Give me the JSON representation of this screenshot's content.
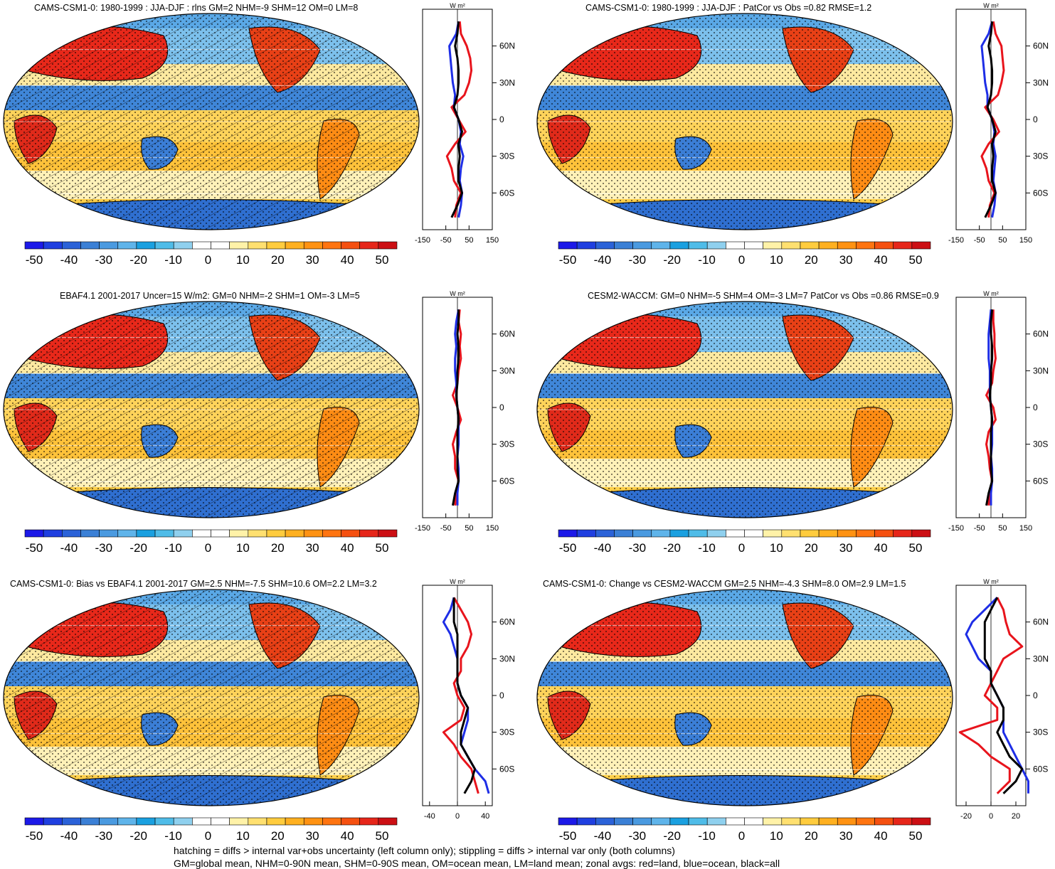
{
  "panels": [
    {
      "id": "p1",
      "title": "CAMS-CSM1-0: 1980-1999 : JJA-DJF : rlns GM=2 NHM=-9 SHM=12 OM=0 LM=8",
      "hatching": true,
      "stippling": true,
      "zonal": {
        "unit": "W m²",
        "x_ticks": [
          "-150",
          "-50",
          "50",
          "150"
        ],
        "x_range": [
          -150,
          150
        ],
        "lat_ticks": [
          "60N",
          "30N",
          "0",
          "30S",
          "60S"
        ]
      },
      "chart_data": {
        "type": "line",
        "title": "",
        "xlabel": "W m²",
        "ylabel": "",
        "xlim": [
          -150,
          150
        ],
        "ylim": [
          -90,
          90
        ],
        "series": [
          {
            "name": "land",
            "color": "#e8141c",
            "lat": [
              80,
              70,
              60,
              50,
              40,
              30,
              20,
              10,
              0,
              -10,
              -20,
              -30,
              -40,
              -50,
              -60,
              -70,
              -80
            ],
            "values": [
              10,
              15,
              40,
              55,
              60,
              50,
              30,
              -25,
              5,
              35,
              -10,
              -45,
              -25,
              -15,
              15,
              -5,
              -10
            ]
          },
          {
            "name": "ocean",
            "color": "#1e2ee6",
            "lat": [
              80,
              70,
              60,
              50,
              40,
              30,
              20,
              10,
              0,
              -10,
              -20,
              -30,
              -40,
              -50,
              -60,
              -70,
              -80
            ],
            "values": [
              5,
              -5,
              -35,
              -30,
              -25,
              -20,
              -10,
              -15,
              5,
              15,
              10,
              25,
              15,
              10,
              20,
              15,
              5
            ]
          },
          {
            "name": "all",
            "color": "#000000",
            "lat": [
              80,
              70,
              60,
              50,
              40,
              30,
              20,
              10,
              0,
              -10,
              -20,
              -30,
              -40,
              -50,
              -60,
              -70,
              -80
            ],
            "values": [
              5,
              0,
              -10,
              0,
              5,
              5,
              0,
              -15,
              5,
              20,
              5,
              10,
              5,
              5,
              20,
              0,
              -25
            ]
          }
        ]
      }
    },
    {
      "id": "p2",
      "title": "CAMS-CSM1-0: 1980-1999 : JJA-DJF : PatCor vs Obs =0.82 RMSE=1.2",
      "hatching": false,
      "stippling": true,
      "zonal": {
        "unit": "W m²",
        "x_ticks": [
          "-150",
          "-50",
          "50",
          "150"
        ],
        "x_range": [
          -150,
          150
        ],
        "lat_ticks": [
          "60N",
          "30N",
          "0",
          "30S",
          "60S"
        ]
      },
      "chart_data": {
        "type": "line",
        "title": "",
        "xlabel": "W m²",
        "ylabel": "",
        "xlim": [
          -150,
          150
        ],
        "ylim": [
          -90,
          90
        ],
        "series": [
          {
            "name": "land",
            "color": "#e8141c",
            "lat": [
              80,
              70,
              60,
              50,
              40,
              30,
              20,
              10,
              0,
              -10,
              -20,
              -30,
              -40,
              -50,
              -60,
              -70,
              -80
            ],
            "values": [
              10,
              20,
              45,
              50,
              55,
              45,
              30,
              -25,
              10,
              35,
              -10,
              -40,
              -20,
              -10,
              15,
              -5,
              -10
            ]
          },
          {
            "name": "ocean",
            "color": "#1e2ee6",
            "lat": [
              80,
              70,
              60,
              50,
              40,
              30,
              20,
              10,
              0,
              -10,
              -20,
              -30,
              -40,
              -50,
              -60,
              -70,
              -80
            ],
            "values": [
              5,
              -10,
              -40,
              -35,
              -30,
              -25,
              -15,
              -15,
              5,
              15,
              10,
              20,
              15,
              10,
              20,
              15,
              5
            ]
          },
          {
            "name": "all",
            "color": "#000000",
            "lat": [
              80,
              70,
              60,
              50,
              40,
              30,
              20,
              10,
              0,
              -10,
              -20,
              -30,
              -40,
              -50,
              -60,
              -70,
              -80
            ],
            "values": [
              5,
              0,
              -10,
              0,
              5,
              5,
              0,
              -15,
              5,
              20,
              5,
              10,
              5,
              5,
              20,
              0,
              -25
            ]
          }
        ]
      }
    },
    {
      "id": "p3",
      "title": "EBAF4.1 2001-2017 Uncer=15 W/m2: GM=0 NHM=-2 SHM=1 OM=-3 LM=5",
      "hatching": true,
      "stippling": true,
      "zonal": {
        "unit": "W m²",
        "x_ticks": [
          "-150",
          "-50",
          "50",
          "150"
        ],
        "x_range": [
          -150,
          150
        ],
        "lat_ticks": [
          "60N",
          "30N",
          "0",
          "30S",
          "60S"
        ]
      },
      "chart_data": {
        "type": "line",
        "title": "",
        "xlabel": "W m²",
        "ylabel": "",
        "xlim": [
          -150,
          150
        ],
        "ylim": [
          -90,
          90
        ],
        "series": [
          {
            "name": "land",
            "color": "#e8141c",
            "lat": [
              80,
              70,
              60,
              50,
              40,
              30,
              20,
              10,
              0,
              -10,
              -20,
              -30,
              -40,
              -50,
              -60,
              -70,
              -80
            ],
            "values": [
              10,
              5,
              15,
              10,
              15,
              5,
              0,
              -20,
              0,
              15,
              -5,
              -20,
              -10,
              -10,
              5,
              -5,
              -10
            ]
          },
          {
            "name": "ocean",
            "color": "#1e2ee6",
            "lat": [
              80,
              70,
              60,
              50,
              40,
              30,
              20,
              10,
              0,
              -10,
              -20,
              -30,
              -40,
              -50,
              -60,
              -70,
              -80
            ],
            "values": [
              5,
              -5,
              -10,
              -5,
              -10,
              -10,
              -5,
              -5,
              0,
              5,
              5,
              5,
              0,
              5,
              5,
              0,
              0
            ]
          },
          {
            "name": "all",
            "color": "#000000",
            "lat": [
              80,
              70,
              60,
              50,
              40,
              30,
              20,
              10,
              0,
              -10,
              -20,
              -30,
              -40,
              -50,
              -60,
              -70,
              -80
            ],
            "values": [
              5,
              5,
              0,
              5,
              5,
              0,
              0,
              -5,
              0,
              5,
              0,
              0,
              0,
              0,
              5,
              -10,
              -20
            ]
          }
        ]
      }
    },
    {
      "id": "p4",
      "title": "CESM2-WACCM: GM=0 NHM=-5 SHM=4 OM=-3 LM=7 PatCor vs Obs =0.86 RMSE=0.9",
      "hatching": false,
      "stippling": true,
      "zonal": {
        "unit": "W m²",
        "x_ticks": [
          "-150",
          "-50",
          "50",
          "150"
        ],
        "x_range": [
          -150,
          150
        ],
        "lat_ticks": [
          "60N",
          "30N",
          "0",
          "30S",
          "60S"
        ]
      },
      "chart_data": {
        "type": "line",
        "title": "",
        "xlabel": "W m²",
        "ylabel": "",
        "xlim": [
          -150,
          150
        ],
        "ylim": [
          -90,
          90
        ],
        "series": [
          {
            "name": "land",
            "color": "#e8141c",
            "lat": [
              80,
              70,
              60,
              50,
              40,
              30,
              20,
              10,
              0,
              -10,
              -20,
              -30,
              -40,
              -50,
              -60,
              -70,
              -80
            ],
            "values": [
              10,
              10,
              15,
              15,
              20,
              10,
              5,
              -20,
              10,
              20,
              -10,
              -20,
              -10,
              -5,
              5,
              -5,
              -10
            ]
          },
          {
            "name": "ocean",
            "color": "#1e2ee6",
            "lat": [
              80,
              70,
              60,
              50,
              40,
              30,
              20,
              10,
              0,
              -10,
              -20,
              -30,
              -40,
              -50,
              -60,
              -70,
              -80
            ],
            "values": [
              0,
              -5,
              -10,
              -10,
              -10,
              -5,
              -5,
              -5,
              0,
              5,
              5,
              5,
              0,
              5,
              5,
              0,
              0
            ]
          },
          {
            "name": "all",
            "color": "#000000",
            "lat": [
              80,
              70,
              60,
              50,
              40,
              30,
              20,
              10,
              0,
              -10,
              -20,
              -30,
              -40,
              -50,
              -60,
              -70,
              -80
            ],
            "values": [
              5,
              0,
              0,
              5,
              5,
              0,
              0,
              -5,
              0,
              5,
              0,
              0,
              0,
              0,
              5,
              -10,
              -20
            ]
          }
        ]
      }
    },
    {
      "id": "p5",
      "title": "CAMS-CSM1-0: Bias vs EBAF4.1 2001-2017 GM=2.5 NHM=-7.5 SHM=10.6 OM=2.2 LM=3.2",
      "hatching": true,
      "stippling": true,
      "zonal": {
        "unit": "W m²",
        "x_ticks": [
          "-40",
          "0",
          "40"
        ],
        "x_range": [
          -50,
          50
        ],
        "lat_ticks": [
          "60N",
          "30N",
          "0",
          "30S",
          "60S"
        ]
      },
      "chart_data": {
        "type": "line",
        "title": "",
        "xlabel": "W m²",
        "ylabel": "",
        "xlim": [
          -50,
          50
        ],
        "ylim": [
          -90,
          90
        ],
        "series": [
          {
            "name": "land",
            "color": "#e8141c",
            "lat": [
              80,
              70,
              60,
              50,
              40,
              30,
              20,
              10,
              0,
              -10,
              -20,
              -30,
              -40,
              -50,
              -60,
              -70,
              -80
            ],
            "values": [
              -5,
              5,
              15,
              20,
              15,
              5,
              5,
              -5,
              0,
              10,
              5,
              -20,
              -5,
              5,
              20,
              25,
              30
            ]
          },
          {
            "name": "ocean",
            "color": "#1e2ee6",
            "lat": [
              80,
              70,
              60,
              50,
              40,
              30,
              20,
              10,
              0,
              -10,
              -20,
              -30,
              -40,
              -50,
              -60,
              -70,
              -80
            ],
            "values": [
              -5,
              -10,
              -20,
              -10,
              -5,
              0,
              0,
              0,
              5,
              15,
              15,
              10,
              5,
              15,
              25,
              40,
              45
            ]
          },
          {
            "name": "all",
            "color": "#000000",
            "lat": [
              80,
              70,
              60,
              50,
              40,
              30,
              20,
              10,
              0,
              -10,
              -20,
              -30,
              -40,
              -50,
              -60,
              -70,
              -80
            ],
            "values": [
              -5,
              -5,
              -5,
              0,
              0,
              0,
              0,
              0,
              5,
              15,
              10,
              5,
              5,
              15,
              25,
              20,
              10
            ]
          }
        ]
      }
    },
    {
      "id": "p6",
      "title": "CAMS-CSM1-0: Change vs CESM2-WACCM GM=2.5 NHM=-4.3 SHM=8.0 OM=2.9 LM=1.5",
      "hatching": false,
      "stippling": true,
      "zonal": {
        "unit": "W m²",
        "x_ticks": [
          "-20",
          "0",
          "20"
        ],
        "x_range": [
          -28,
          28
        ],
        "lat_ticks": [
          "60N",
          "30N",
          "0",
          "30S",
          "60S"
        ]
      },
      "chart_data": {
        "type": "line",
        "title": "",
        "xlabel": "W m²",
        "ylabel": "",
        "xlim": [
          -28,
          28
        ],
        "ylim": [
          -90,
          90
        ],
        "series": [
          {
            "name": "land",
            "color": "#e8141c",
            "lat": [
              80,
              70,
              60,
              50,
              40,
              30,
              20,
              10,
              0,
              -10,
              -20,
              -30,
              -40,
              -50,
              -60,
              -70,
              -80
            ],
            "values": [
              5,
              10,
              12,
              15,
              25,
              10,
              5,
              0,
              -5,
              5,
              5,
              -25,
              -10,
              0,
              15,
              15,
              5
            ]
          },
          {
            "name": "ocean",
            "color": "#1e2ee6",
            "lat": [
              80,
              70,
              60,
              50,
              40,
              30,
              20,
              10,
              0,
              -10,
              -20,
              -30,
              -40,
              -50,
              -60,
              -70,
              -80
            ],
            "values": [
              5,
              -5,
              -15,
              -20,
              -15,
              -10,
              0,
              0,
              5,
              10,
              10,
              10,
              15,
              20,
              25,
              30,
              30
            ]
          },
          {
            "name": "all",
            "color": "#000000",
            "lat": [
              80,
              70,
              60,
              50,
              40,
              30,
              20,
              10,
              0,
              -10,
              -20,
              -30,
              -40,
              -50,
              -60,
              -70,
              -80
            ],
            "values": [
              5,
              0,
              -5,
              -5,
              -5,
              -5,
              0,
              0,
              5,
              10,
              10,
              5,
              10,
              15,
              25,
              20,
              10
            ]
          }
        ]
      }
    }
  ],
  "colorbar": {
    "labels": [
      "-50",
      "-40",
      "-30",
      "-20",
      "-10",
      "0",
      "10",
      "20",
      "30",
      "40",
      "50"
    ],
    "colors": [
      "#1c19e8",
      "#1f3fe0",
      "#2b62d8",
      "#3b80d6",
      "#4a9ae0",
      "#5fb4ea",
      "#1aa0e0",
      "#4fbce8",
      "#8fd0ee",
      "#ffffff",
      "#ffffff",
      "#fff2a8",
      "#ffe070",
      "#ffcc3e",
      "#ffb020",
      "#ff9212",
      "#ff7410",
      "#f55010",
      "#e6261a",
      "#cc0f14"
    ]
  },
  "footer": {
    "line1": "hatching = diffs > internal var+obs uncertainty (left column only); stippling = diffs > internal var only (both columns)",
    "line2": "GM=global mean, NHM=0-90N mean, SHM=0-90S mean, OM=ocean mean, LM=land mean; zonal avgs: red=land, blue=ocean, black=all"
  }
}
